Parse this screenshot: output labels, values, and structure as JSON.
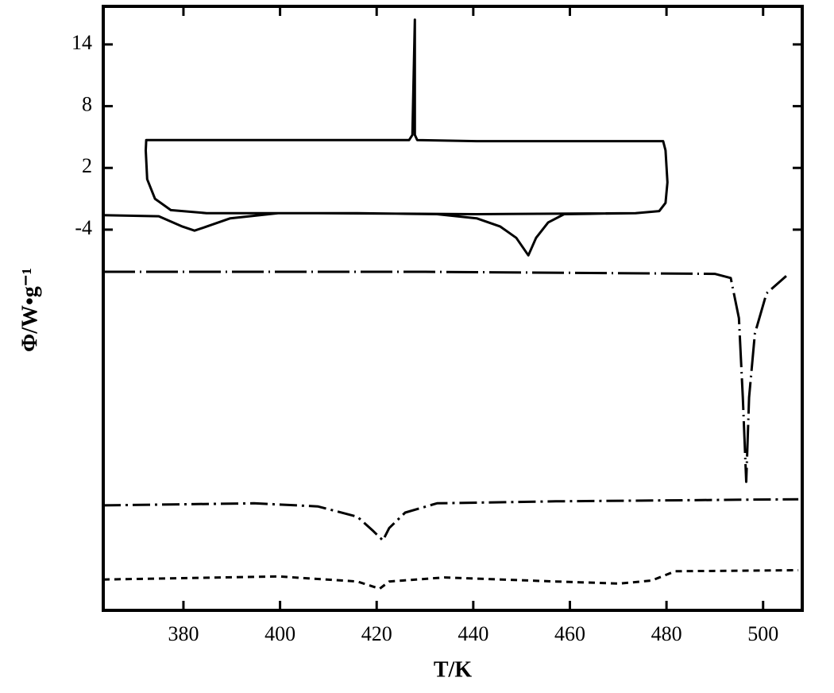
{
  "chart_data": {
    "type": "line",
    "x_label": "T/K",
    "y_label": "Φ/W•g⁻¹",
    "xlim": [
      363.4,
      508.1
    ],
    "ylim": [
      -41,
      17.7
    ],
    "xticks": [
      380,
      400,
      420,
      440,
      460,
      480,
      500
    ],
    "yticks": [
      -4,
      2,
      8,
      14
    ],
    "series": [
      {
        "color": "#000000",
        "dash": "none",
        "x": [
          363.4,
          374.9,
          379.8,
          382.3,
          384.8,
          389.7,
          399.6,
          416.0,
          432.5,
          440.7,
          445.6,
          448.9,
          451.4,
          453.0,
          455.5,
          458.8,
          473.6,
          478.5,
          479.8,
          480.2,
          479.8,
          479.3,
          457.1,
          440.7,
          428.4,
          427.9,
          427.9,
          427.4,
          426.7,
          407.8,
          372.3,
          372.2,
          372.5,
          374.1,
          377.4,
          384.8,
          407.8,
          440.7,
          473.6
        ],
        "values": [
          -2.6,
          -2.7,
          -3.7,
          -4.1,
          -3.7,
          -2.9,
          -2.4,
          -2.4,
          -2.5,
          -2.9,
          -3.7,
          -4.8,
          -6.5,
          -4.8,
          -3.3,
          -2.5,
          -2.4,
          -2.2,
          -1.4,
          0.6,
          3.7,
          4.6,
          4.6,
          4.6,
          4.7,
          5.2,
          16.4,
          5.2,
          4.7,
          4.7,
          4.7,
          3.7,
          0.9,
          -1.0,
          -2.1,
          -2.4,
          -2.4,
          -2.5,
          -2.4
        ]
      },
      {
        "color": "#000000",
        "dash": "40 6 2 6",
        "x": [
          363.4,
          430.0,
          490.0,
          493.3,
          495.0,
          495.8,
          496.5,
          497.1,
          498.3,
          500.7,
          504.8
        ],
        "values": [
          -8.1,
          -8.1,
          -8.3,
          -8.7,
          -12.6,
          -20.3,
          -28.5,
          -20.3,
          -14.1,
          -10.2,
          -8.5
        ]
      },
      {
        "color": "#000000",
        "dash": "22 6 3 6",
        "x": [
          363.4,
          394.6,
          407.8,
          416.0,
          419.3,
          421.3,
          422.6,
          425.9,
          432.5,
          457.1,
          507.3
        ],
        "values": [
          -30.8,
          -30.6,
          -30.9,
          -31.9,
          -33.3,
          -34.2,
          -33.0,
          -31.5,
          -30.6,
          -30.4,
          -30.2
        ]
      },
      {
        "color": "#000000",
        "dash": "8 6",
        "x": [
          363.4,
          399.6,
          416.0,
          420.6,
          422.6,
          434.1,
          457.1,
          470.3,
          476.9,
          481.8,
          507.3
        ],
        "values": [
          -38.0,
          -37.7,
          -38.2,
          -38.9,
          -38.2,
          -37.8,
          -38.2,
          -38.4,
          -38.1,
          -37.2,
          -37.1
        ]
      }
    ]
  }
}
